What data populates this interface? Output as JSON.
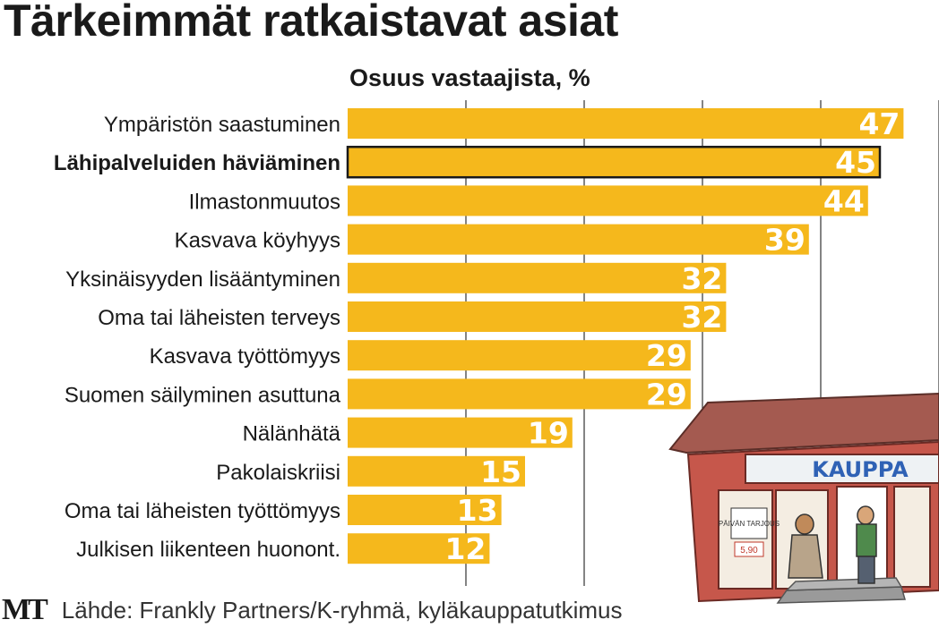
{
  "title": "Tärkeimmät ratkaistavat asiat",
  "subtitle": "Osuus vastaajista, %",
  "source": {
    "logo": "MT",
    "text": "Lähde: Frankly Partners/K-ryhmä, kyläkauppatutkimus"
  },
  "illustration": {
    "sign": "KAUPPA",
    "poster": "PÄIVÄN TARJOUS",
    "price": "5,90"
  },
  "colors": {
    "bar": "#f5b81c",
    "gridline": "#333333",
    "highlight_outline": "#1a1a1a"
  },
  "chart_data": {
    "type": "bar",
    "orientation": "horizontal",
    "categories": [
      "Ympäristön saastuminen",
      "Lähipalveluiden häviäminen",
      "Ilmastonmuutos",
      "Kasvava köyhyys",
      "Yksinäisyyden lisääntyminen",
      "Oma tai läheisten terveys",
      "Kasvava työttömyys",
      "Suomen säilyminen asuttuna",
      "Nälänhätä",
      "Pakolaiskriisi",
      "Oma tai läheisten työttömyys",
      "Julkisen liikenteen huonont."
    ],
    "values": [
      47,
      45,
      44,
      39,
      32,
      32,
      29,
      29,
      19,
      15,
      13,
      12
    ],
    "highlighted_category": "Lähipalveluiden häviäminen",
    "xlim": [
      0,
      50
    ],
    "grid": true
  }
}
